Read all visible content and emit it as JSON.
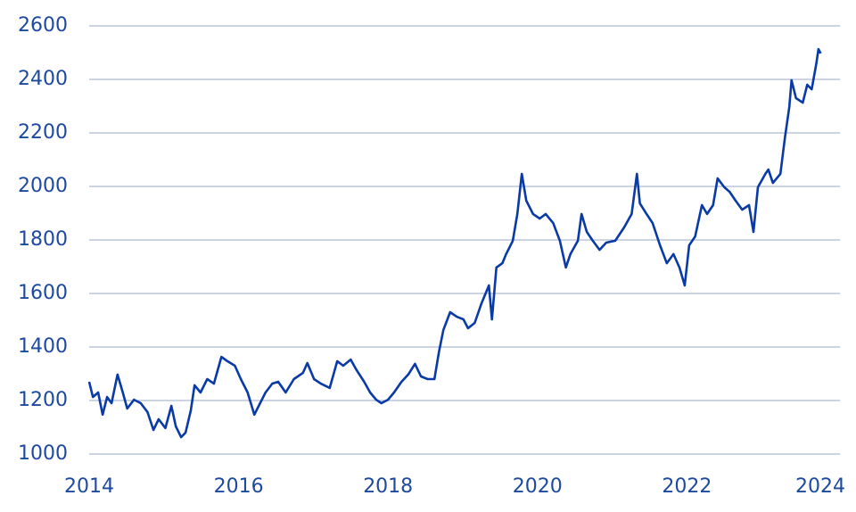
{
  "chart_data": {
    "type": "line",
    "x": [
      2014.0,
      2014.05,
      2014.12,
      2014.18,
      2014.24,
      2014.3,
      2014.38,
      2014.45,
      2014.51,
      2014.6,
      2014.69,
      2014.78,
      2014.86,
      2014.93,
      2015.02,
      2015.1,
      2015.16,
      2015.23,
      2015.29,
      2015.36,
      2015.41,
      2015.49,
      2015.58,
      2015.67,
      2015.77,
      2015.85,
      2015.95,
      2016.03,
      2016.12,
      2016.21,
      2016.27,
      2016.36,
      2016.45,
      2016.53,
      2016.63,
      2016.74,
      2016.86,
      2016.92,
      2017.01,
      2017.1,
      2017.22,
      2017.32,
      2017.4,
      2017.5,
      2017.58,
      2017.68,
      2017.76,
      2017.84,
      2017.91,
      2018.0,
      2018.08,
      2018.18,
      2018.27,
      2018.36,
      2018.44,
      2018.53,
      2018.62,
      2018.68,
      2018.74,
      2018.83,
      2018.92,
      2019.01,
      2019.07,
      2019.16,
      2019.25,
      2019.35,
      2019.39,
      2019.45,
      2019.53,
      2019.58,
      2019.67,
      2019.73,
      2019.79,
      2019.85,
      2019.94,
      2020.03,
      2020.11,
      2020.21,
      2020.3,
      2020.38,
      2020.44,
      2020.54,
      2020.59,
      2020.66,
      2020.74,
      2020.83,
      2020.92,
      2021.04,
      2021.16,
      2021.26,
      2021.33,
      2021.37,
      2021.46,
      2021.54,
      2021.64,
      2021.73,
      2021.82,
      2021.9,
      2021.97,
      2022.03,
      2022.11,
      2022.2,
      2022.27,
      2022.35,
      2022.41,
      2022.5,
      2022.57,
      2022.65,
      2022.74,
      2022.83,
      2022.89,
      2022.95,
      2023.05,
      2023.09,
      2023.15,
      2023.25,
      2023.31,
      2023.37,
      2023.4,
      2023.46,
      2023.55,
      2023.61,
      2023.67,
      2023.73,
      2023.76,
      2023.79
    ],
    "series": [
      {
        "color": "#0a3aa6",
        "values": [
          1270,
          1213,
          1230,
          1147,
          1213,
          1190,
          1297,
          1230,
          1170,
          1203,
          1190,
          1157,
          1090,
          1130,
          1097,
          1180,
          1103,
          1063,
          1080,
          1163,
          1257,
          1230,
          1280,
          1263,
          1363,
          1347,
          1330,
          1280,
          1230,
          1147,
          1180,
          1230,
          1263,
          1270,
          1230,
          1280,
          1303,
          1340,
          1280,
          1263,
          1247,
          1347,
          1330,
          1353,
          1313,
          1270,
          1230,
          1203,
          1190,
          1203,
          1230,
          1270,
          1297,
          1337,
          1290,
          1280,
          1280,
          1380,
          1463,
          1530,
          1513,
          1503,
          1470,
          1490,
          1563,
          1630,
          1503,
          1697,
          1713,
          1747,
          1797,
          1897,
          2047,
          1947,
          1897,
          1880,
          1897,
          1863,
          1797,
          1697,
          1747,
          1797,
          1897,
          1830,
          1797,
          1763,
          1790,
          1797,
          1847,
          1897,
          2047,
          1937,
          1897,
          1863,
          1780,
          1713,
          1747,
          1697,
          1630,
          1780,
          1813,
          1930,
          1897,
          1930,
          2030,
          1997,
          1980,
          1947,
          1913,
          1930,
          1830,
          1997,
          2047,
          2063,
          2013,
          2047,
          2180,
          2297,
          2397,
          2330,
          2313,
          2380,
          2363,
          2457,
          2513,
          2497
        ]
      }
    ],
    "xlim": [
      2014,
      2024
    ],
    "xticks": [
      2014,
      2016,
      2018,
      2020,
      2022,
      2024
    ],
    "ylim": [
      1000,
      2600
    ],
    "yticks": [
      1000,
      1200,
      1400,
      1600,
      1800,
      2000,
      2200,
      2400,
      2600
    ],
    "grid": true
  }
}
